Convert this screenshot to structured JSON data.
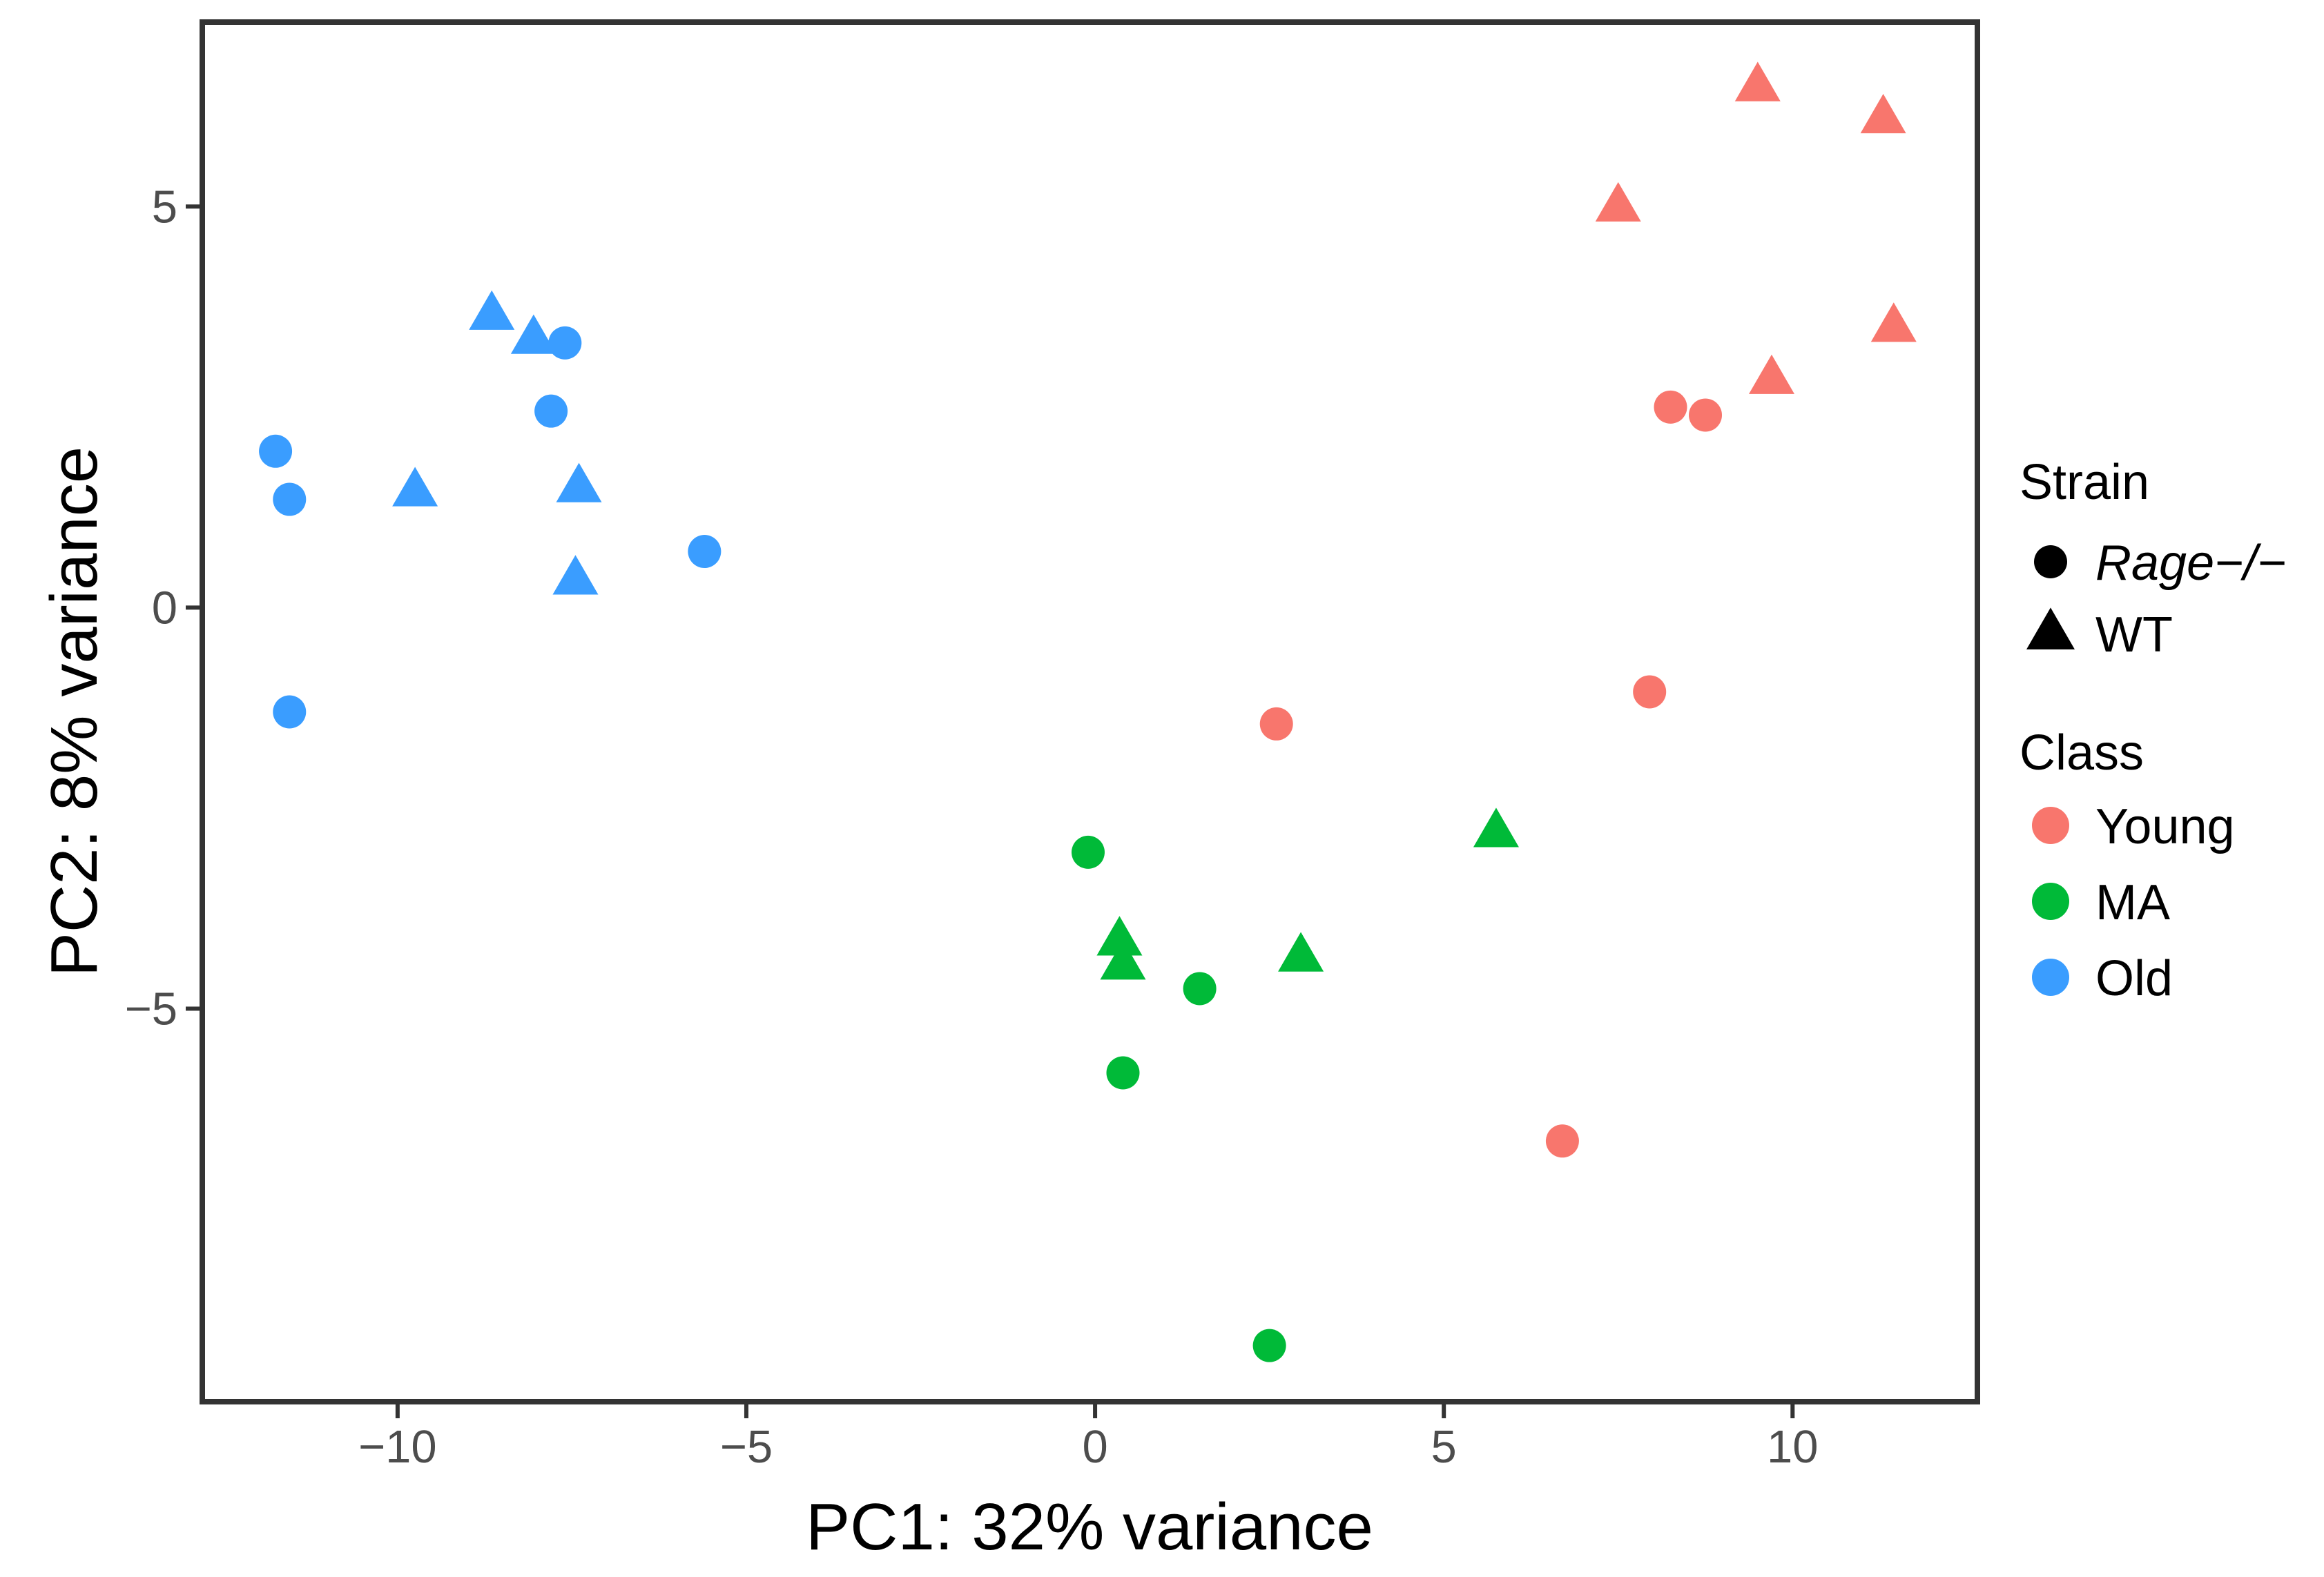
{
  "chart_data": {
    "type": "scatter",
    "xlabel": "PC1: 32% variance",
    "ylabel": "PC2: 8% variance",
    "xlim": [
      -12.8,
      12.65
    ],
    "ylim": [
      -9.9,
      7.3
    ],
    "xticks": [
      -10,
      -5,
      0,
      5,
      10
    ],
    "xtick_labels": [
      "−10",
      "−5",
      "0",
      "5",
      "10"
    ],
    "yticks": [
      -5,
      0,
      5
    ],
    "ytick_labels": [
      "−5",
      "0",
      "5"
    ],
    "grid": false,
    "legend_position": "right",
    "legend": {
      "strain_title": "Strain",
      "strain": [
        {
          "name": "Rage−/−",
          "shape": "circle",
          "italic": true
        },
        {
          "name": "WT",
          "shape": "triangle",
          "italic": false
        }
      ],
      "class_title": "Class",
      "class": [
        {
          "name": "Young",
          "color": "#F8766D"
        },
        {
          "name": "MA",
          "color": "#00BA38"
        },
        {
          "name": "Old",
          "color": "#3A9DFF"
        }
      ]
    },
    "series": [
      {
        "class": "Young",
        "strain": "WT",
        "points": [
          [
            9.5,
            6.5
          ],
          [
            11.3,
            6.1
          ],
          [
            7.5,
            5.0
          ],
          [
            11.45,
            3.5
          ],
          [
            9.7,
            2.85
          ]
        ]
      },
      {
        "class": "Young",
        "strain": "Rage−/−",
        "points": [
          [
            8.25,
            2.5
          ],
          [
            8.75,
            2.4
          ],
          [
            7.95,
            -1.05
          ],
          [
            2.6,
            -1.45
          ],
          [
            6.7,
            -6.65
          ]
        ]
      },
      {
        "class": "MA",
        "strain": "WT",
        "points": [
          [
            5.75,
            -2.8
          ],
          [
            0.35,
            -4.15
          ],
          [
            0.4,
            -4.45
          ],
          [
            2.95,
            -4.35
          ]
        ]
      },
      {
        "class": "MA",
        "strain": "Rage−/−",
        "points": [
          [
            -0.1,
            -3.05
          ],
          [
            1.5,
            -4.75
          ],
          [
            0.4,
            -5.8
          ],
          [
            2.5,
            -9.2
          ]
        ]
      },
      {
        "class": "Old",
        "strain": "WT",
        "points": [
          [
            -8.65,
            3.65
          ],
          [
            -8.05,
            3.35
          ],
          [
            -9.75,
            1.45
          ],
          [
            -7.4,
            1.5
          ],
          [
            -7.45,
            0.35
          ]
        ]
      },
      {
        "class": "Old",
        "strain": "Rage−/−",
        "points": [
          [
            -7.6,
            3.3
          ],
          [
            -7.8,
            2.45
          ],
          [
            -11.75,
            1.95
          ],
          [
            -11.55,
            1.35
          ],
          [
            -5.6,
            0.7
          ],
          [
            -11.55,
            -1.3
          ]
        ]
      }
    ]
  }
}
